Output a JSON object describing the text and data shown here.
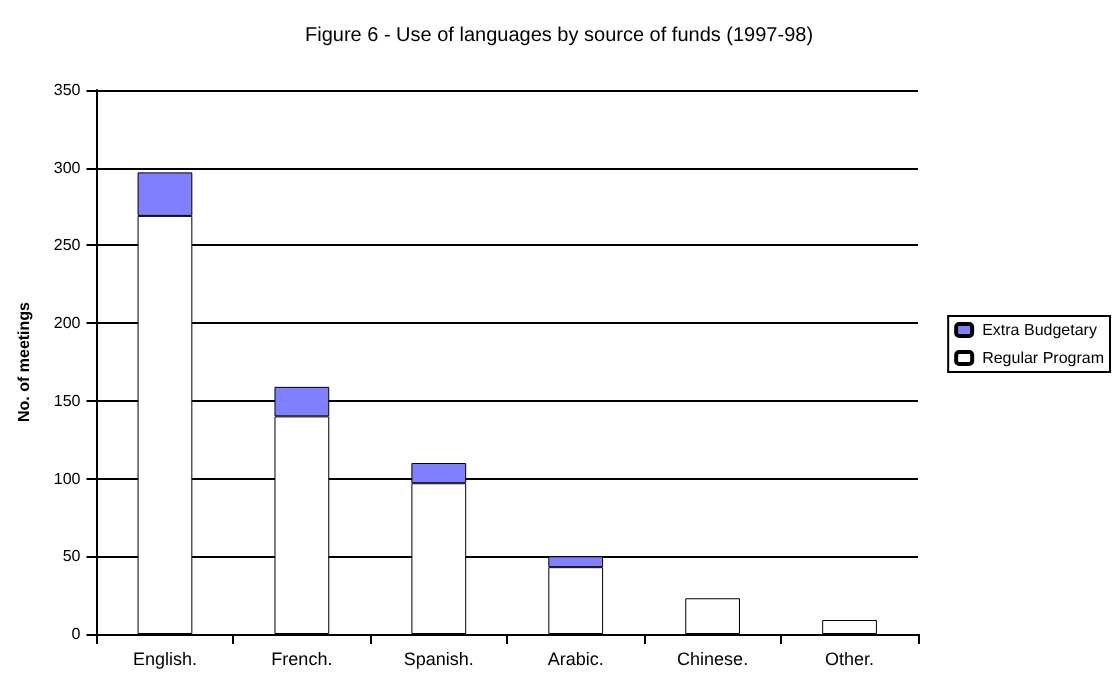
{
  "chart_data": {
    "type": "bar",
    "title": "Figure 6 - Use of languages by source of funds (1997-98)",
    "ylabel": "No. of meetings",
    "categories": [
      "English.",
      "French.",
      "Spanish.",
      "Arabic.",
      "Chinese.",
      "Other."
    ],
    "stacked": true,
    "series": [
      {
        "name": "Regular Program",
        "color": "#ffffff",
        "values": [
          269,
          140,
          97,
          43,
          23,
          9
        ]
      },
      {
        "name": "Extra Budgetary",
        "color": "#8080ff",
        "values": [
          28,
          19,
          13,
          7,
          null,
          null
        ]
      }
    ],
    "ylim": [
      0,
      350
    ],
    "yticks": [
      0,
      50,
      100,
      150,
      200,
      250,
      300,
      350
    ],
    "grid": "y",
    "legend": "right"
  }
}
